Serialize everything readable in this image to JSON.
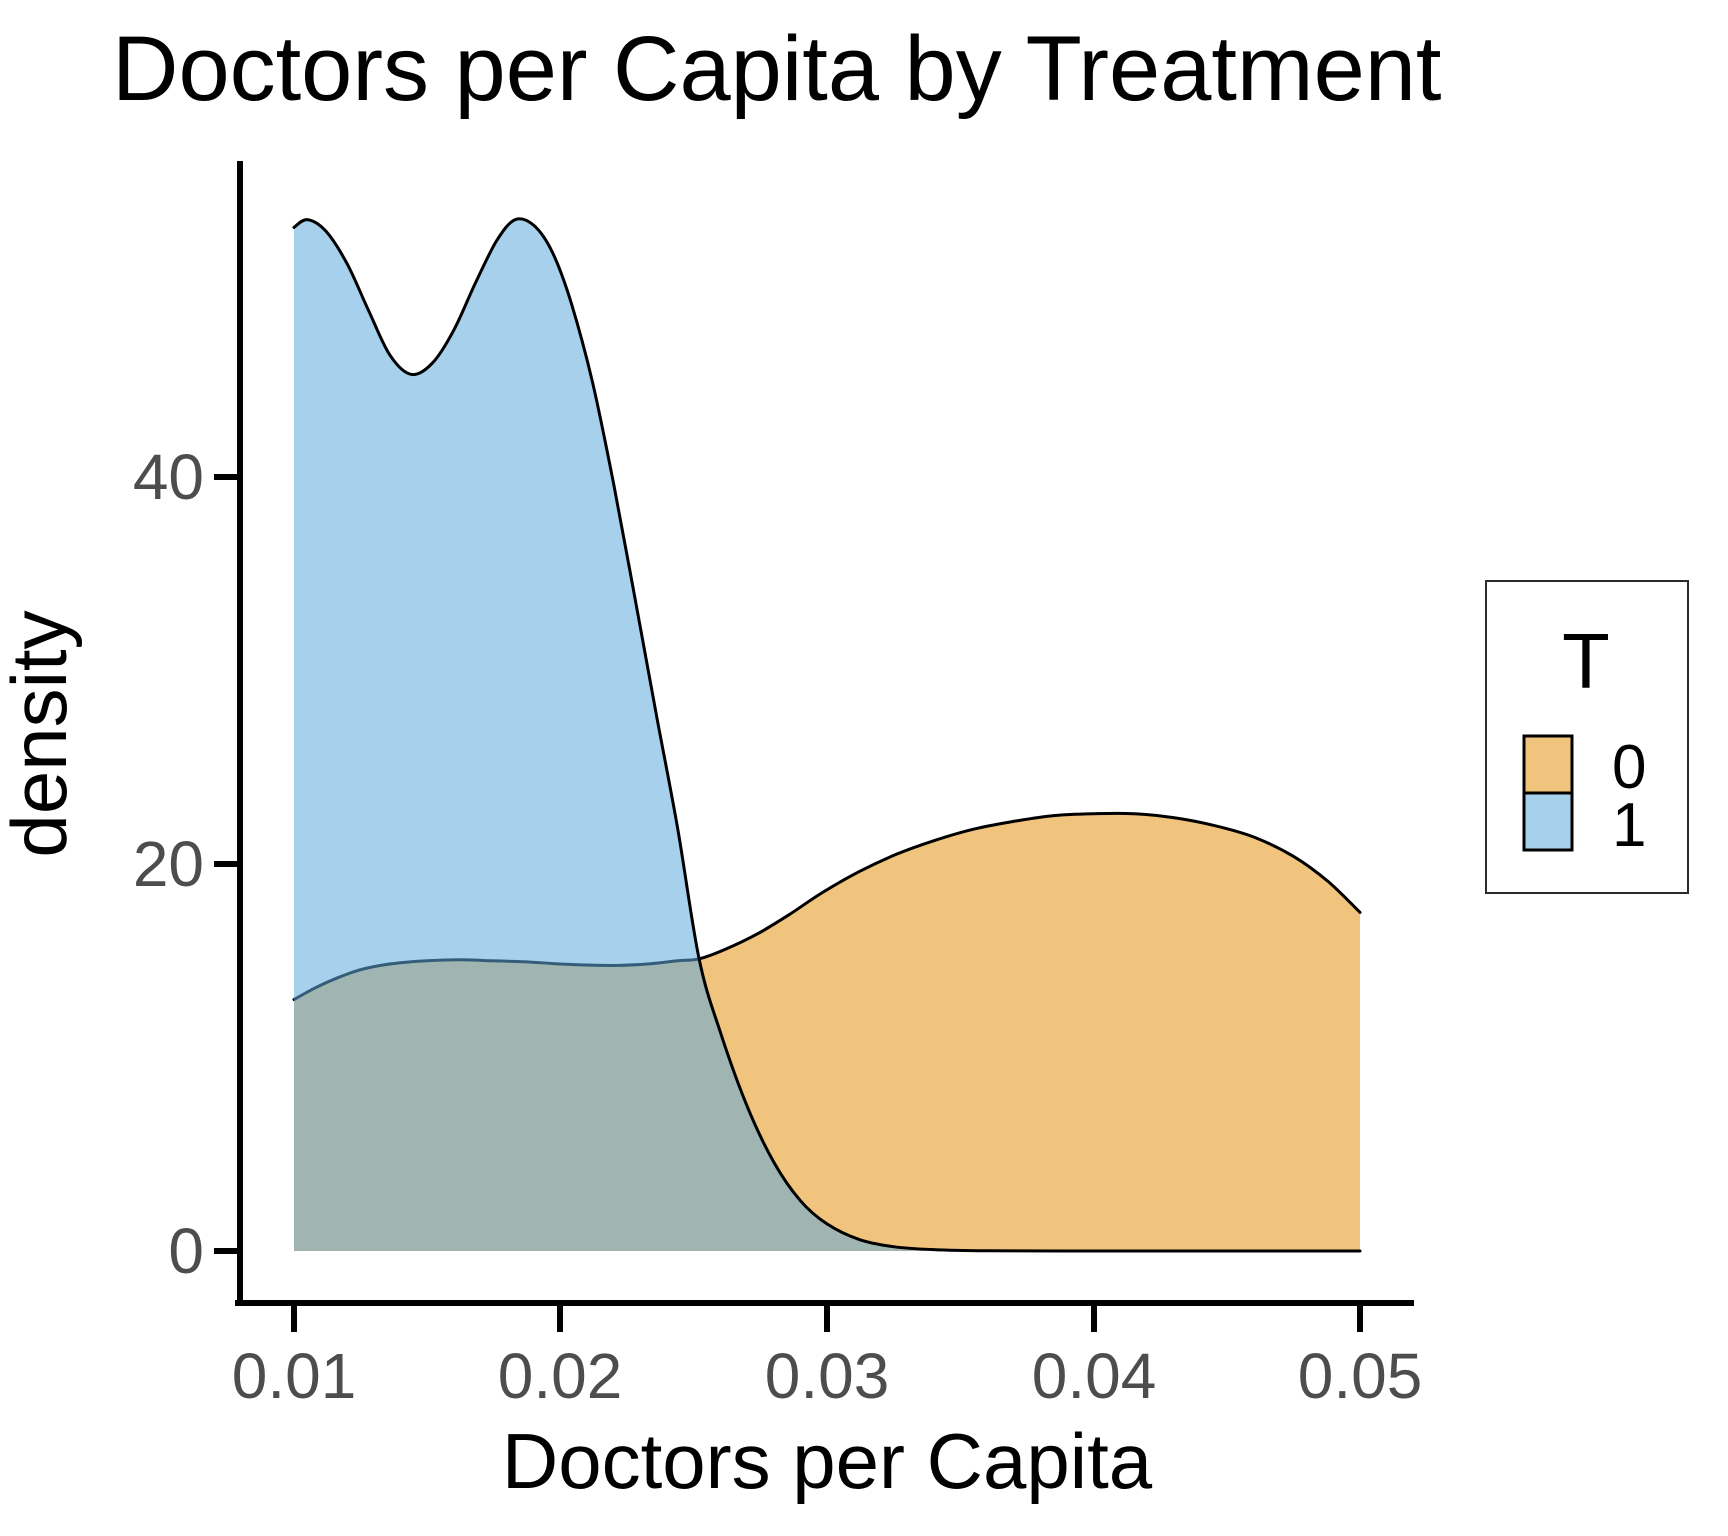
{
  "title": "Doctors per Capita by Treatment",
  "axes": {
    "x_label": "Doctors per Capita",
    "y_label": "density",
    "x_tick_labels": [
      "0.01",
      "0.02",
      "0.03",
      "0.04",
      "0.05"
    ],
    "y_tick_labels": [
      "0",
      "20",
      "40"
    ]
  },
  "legend": {
    "title": "T",
    "entries": [
      {
        "label": "0",
        "color": "rgba(227,148,17,0.55)"
      },
      {
        "label": "1",
        "color": "rgba(95,170,220,0.55)"
      }
    ]
  },
  "colors": {
    "background": "#ffffff",
    "axis": "#000000",
    "tick_label": "#4D4D4D",
    "curve_stroke": "#000000",
    "orange_fill_over_white": "#F0C47E",
    "blue_fill_over_white": "#A7D0EC",
    "overlap_fill": "#9FB6B1"
  },
  "chart_data": {
    "type": "area",
    "subtype": "overlapping-density",
    "title": "Doctors per Capita by Treatment",
    "xlabel": "Doctors per Capita",
    "ylabel": "density",
    "xlim": [
      0.01,
      0.05
    ],
    "ylim": [
      0,
      56
    ],
    "x_ticks": [
      0.01,
      0.02,
      0.03,
      0.04,
      0.05
    ],
    "y_ticks": [
      0,
      20,
      40
    ],
    "grid": false,
    "legend_title": "T",
    "legend_position": "right",
    "series": [
      {
        "name": "0",
        "fill": "rgba(227,148,17,0.55)",
        "x": [
          0.01,
          0.0108,
          0.0116,
          0.0124,
          0.0132,
          0.014,
          0.015,
          0.0162,
          0.0174,
          0.0186,
          0.0198,
          0.021,
          0.0222,
          0.0234,
          0.0244,
          0.0252,
          0.0262,
          0.0274,
          0.0286,
          0.0298,
          0.0312,
          0.0326,
          0.034,
          0.0355,
          0.037,
          0.0385,
          0.04,
          0.0415,
          0.043,
          0.0445,
          0.046,
          0.0475,
          0.0488,
          0.05
        ],
        "y": [
          13.0,
          13.6,
          14.1,
          14.5,
          14.75,
          14.9,
          15.0,
          15.05,
          15.0,
          14.95,
          14.85,
          14.78,
          14.76,
          14.85,
          15.0,
          15.1,
          15.6,
          16.4,
          17.4,
          18.5,
          19.6,
          20.5,
          21.2,
          21.8,
          22.2,
          22.5,
          22.6,
          22.6,
          22.4,
          22.0,
          21.4,
          20.4,
          19.1,
          17.5
        ]
      },
      {
        "name": "1",
        "fill": "rgba(95,170,220,0.55)",
        "x": [
          0.01,
          0.0105,
          0.0112,
          0.012,
          0.0128,
          0.0136,
          0.0144,
          0.0152,
          0.016,
          0.0168,
          0.0176,
          0.0183,
          0.019,
          0.0197,
          0.0204,
          0.0212,
          0.022,
          0.0228,
          0.0236,
          0.0244,
          0.0252,
          0.026,
          0.027,
          0.028,
          0.029,
          0.03,
          0.0312,
          0.0325,
          0.034,
          0.036,
          0.039,
          0.043,
          0.047,
          0.05
        ],
        "y": [
          52.9,
          53.3,
          52.7,
          51.0,
          48.6,
          46.3,
          45.3,
          45.9,
          47.6,
          50.0,
          52.2,
          53.3,
          53.0,
          51.6,
          49.0,
          44.9,
          39.6,
          33.7,
          27.7,
          21.8,
          15.1,
          11.3,
          7.5,
          4.6,
          2.6,
          1.4,
          0.6,
          0.22,
          0.07,
          0.01,
          0.0,
          0.0,
          0.0,
          0.0
        ]
      }
    ]
  }
}
